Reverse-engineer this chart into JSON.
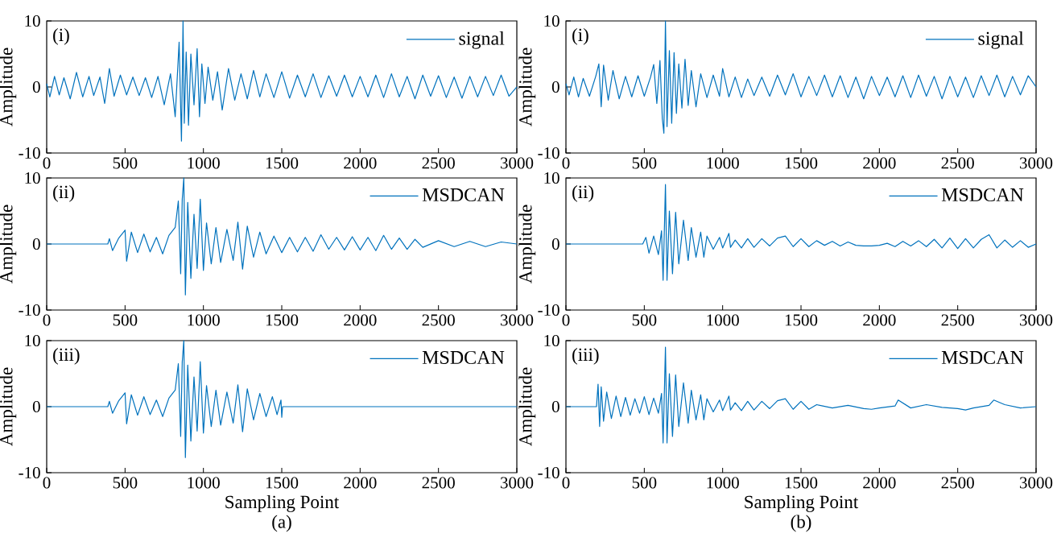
{
  "chart_data": [
    {
      "type": "line",
      "ylabel": "Amplitude",
      "xlim": [
        0,
        3000
      ],
      "ylim": [
        -10,
        10
      ],
      "xticks": [
        0,
        500,
        1000,
        1500,
        2000,
        2500,
        3000
      ],
      "yticks": [
        -10,
        0,
        10
      ],
      "legend": "top right",
      "annotations": [
        "(i)"
      ],
      "series": [
        {
          "name": "signal",
          "color": "#0072bd",
          "x": [
            0,
            20,
            50,
            80,
            110,
            150,
            190,
            230,
            270,
            300,
            340,
            370,
            400,
            430,
            470,
            510,
            550,
            590,
            630,
            670,
            710,
            750,
            790,
            820,
            845,
            860,
            870,
            878,
            890,
            905,
            920,
            940,
            960,
            975,
            990,
            1010,
            1030,
            1060,
            1090,
            1120,
            1160,
            1200,
            1240,
            1280,
            1320,
            1360,
            1400,
            1450,
            1500,
            1550,
            1600,
            1650,
            1700,
            1750,
            1800,
            1850,
            1900,
            1950,
            2000,
            2050,
            2100,
            2150,
            2200,
            2250,
            2300,
            2350,
            2400,
            2450,
            2500,
            2550,
            2600,
            2650,
            2700,
            2750,
            2800,
            2850,
            2900,
            2950,
            3000
          ],
          "values": [
            0.5,
            -1.5,
            1.6,
            -1.2,
            1.4,
            -1.8,
            2.2,
            -1.5,
            1.6,
            -1.3,
            1.5,
            -2.5,
            2.8,
            -1.4,
            1.8,
            -1.2,
            1.5,
            -1.3,
            1.4,
            -1.6,
            1.6,
            -2.7,
            2.0,
            -4.5,
            6.8,
            -8.2,
            10,
            -5.5,
            5.3,
            -5.8,
            5.0,
            -2.7,
            5.8,
            -4.5,
            3.5,
            -2.5,
            3.0,
            -2.0,
            2.3,
            -3.5,
            2.8,
            -2.0,
            2.0,
            -1.8,
            2.5,
            -1.5,
            2.0,
            -1.6,
            2.3,
            -1.7,
            1.8,
            -1.5,
            2.0,
            -1.6,
            1.7,
            -1.4,
            1.8,
            -1.5,
            1.6,
            -1.5,
            1.8,
            -1.6,
            2.0,
            -1.5,
            1.6,
            -1.8,
            1.8,
            -1.4,
            1.7,
            -1.6,
            1.5,
            -1.7,
            1.6,
            -1.5,
            1.6,
            -1.3,
            1.8,
            -1.4,
            0
          ]
        }
      ]
    },
    {
      "type": "line",
      "ylabel": "Amplitude",
      "xlim": [
        0,
        3000
      ],
      "ylim": [
        -10,
        10
      ],
      "xticks": [
        0,
        500,
        1000,
        1500,
        2000,
        2500,
        3000
      ],
      "yticks": [
        -10,
        0,
        10
      ],
      "legend": "top right",
      "annotations": [
        "(i)"
      ],
      "series": [
        {
          "name": "signal",
          "color": "#0072bd",
          "x": [
            0,
            20,
            50,
            80,
            110,
            150,
            190,
            210,
            225,
            240,
            270,
            300,
            340,
            380,
            420,
            460,
            500,
            540,
            560,
            580,
            600,
            615,
            625,
            635,
            645,
            660,
            675,
            690,
            705,
            720,
            740,
            760,
            780,
            800,
            830,
            860,
            900,
            940,
            980,
            1000,
            1040,
            1080,
            1120,
            1160,
            1200,
            1250,
            1300,
            1350,
            1400,
            1450,
            1500,
            1550,
            1600,
            1650,
            1700,
            1750,
            1800,
            1850,
            1900,
            1950,
            2000,
            2050,
            2100,
            2150,
            2200,
            2250,
            2300,
            2350,
            2400,
            2450,
            2500,
            2550,
            2600,
            2650,
            2700,
            2750,
            2800,
            2850,
            2900,
            2950,
            3000
          ],
          "values": [
            0.5,
            -1.2,
            1.5,
            -1.5,
            1.3,
            -1.4,
            1.6,
            3.5,
            -3.0,
            3.3,
            -2.0,
            2.5,
            -1.8,
            1.6,
            -1.5,
            1.7,
            -1.4,
            1.5,
            3.4,
            -2.5,
            4.0,
            -4.8,
            -7.0,
            10,
            -6.0,
            5.5,
            -5.5,
            5.2,
            -4.0,
            3.5,
            -3.2,
            4.2,
            -2.8,
            2.5,
            -3.0,
            2.0,
            -1.6,
            1.8,
            -1.4,
            2.8,
            -1.5,
            1.5,
            -1.6,
            1.2,
            -1.3,
            1.5,
            -1.4,
            1.8,
            -1.2,
            2.0,
            -1.5,
            1.6,
            -1.3,
            1.8,
            -1.5,
            1.7,
            -1.6,
            1.5,
            -1.8,
            1.6,
            -1.3,
            1.5,
            -1.5,
            1.7,
            -1.6,
            1.8,
            -1.4,
            1.6,
            -1.8,
            1.6,
            -1.5,
            1.5,
            -1.6,
            1.7,
            -1.3,
            1.8,
            -1.5,
            1.6,
            -1.2,
            1.7,
            0
          ]
        }
      ]
    },
    {
      "type": "line",
      "ylabel": "Amplitude",
      "xlim": [
        0,
        3000
      ],
      "ylim": [
        -10,
        10
      ],
      "xticks": [
        0,
        500,
        1000,
        1500,
        2000,
        2500,
        3000
      ],
      "yticks": [
        -10,
        0,
        10
      ],
      "legend": "top right",
      "annotations": [
        "(ii)"
      ],
      "series": [
        {
          "name": "MSDCAN",
          "color": "#0072bd",
          "x": [
            0,
            390,
            400,
            420,
            460,
            500,
            510,
            540,
            580,
            620,
            660,
            700,
            740,
            780,
            820,
            840,
            855,
            865,
            875,
            885,
            900,
            920,
            940,
            960,
            980,
            1000,
            1020,
            1050,
            1080,
            1110,
            1150,
            1190,
            1220,
            1250,
            1280,
            1320,
            1360,
            1400,
            1450,
            1500,
            1550,
            1600,
            1650,
            1700,
            1750,
            1800,
            1850,
            1900,
            1950,
            2000,
            2050,
            2100,
            2150,
            2200,
            2250,
            2300,
            2350,
            2400,
            2500,
            2600,
            2700,
            2800,
            2900,
            3000
          ],
          "values": [
            0,
            0,
            0.8,
            -1.0,
            0.9,
            2.1,
            -2.6,
            1.8,
            -1.3,
            1.5,
            -1.2,
            1.0,
            -1.5,
            1.3,
            2.5,
            6.5,
            -4.5,
            6.8,
            10,
            -7.7,
            6.3,
            -5.2,
            4.5,
            -3.7,
            6.8,
            -4.0,
            3.2,
            -3.0,
            2.5,
            -2.8,
            2.2,
            -2.5,
            3.3,
            -3.8,
            2.7,
            -2.0,
            1.8,
            -1.5,
            1.2,
            -1.3,
            1.0,
            -1.2,
            1.0,
            -1.1,
            1.4,
            -0.8,
            1.0,
            -0.9,
            1.1,
            -0.9,
            1.0,
            -1.0,
            1.3,
            -0.8,
            0.9,
            -0.8,
            0.7,
            -0.5,
            0.5,
            -0.4,
            0.4,
            -0.4,
            0.3,
            0
          ]
        }
      ]
    },
    {
      "type": "line",
      "ylabel": "Amplitude",
      "xlim": [
        0,
        3000
      ],
      "ylim": [
        -10,
        10
      ],
      "xticks": [
        0,
        500,
        1000,
        1500,
        2000,
        2500,
        3000
      ],
      "yticks": [
        -10,
        0,
        10
      ],
      "legend": "top right",
      "annotations": [
        "(ii)"
      ],
      "series": [
        {
          "name": "MSDCAN",
          "color": "#0072bd",
          "x": [
            0,
            490,
            510,
            530,
            560,
            590,
            610,
            620,
            630,
            635,
            645,
            660,
            680,
            700,
            720,
            750,
            780,
            800,
            830,
            860,
            880,
            900,
            940,
            980,
            1000,
            1040,
            1050,
            1080,
            1120,
            1160,
            1200,
            1250,
            1300,
            1350,
            1400,
            1450,
            1500,
            1550,
            1600,
            1650,
            1700,
            1750,
            1800,
            1850,
            1900,
            1950,
            2000,
            2050,
            2100,
            2150,
            2200,
            2250,
            2300,
            2350,
            2400,
            2450,
            2500,
            2550,
            2600,
            2650,
            2700,
            2750,
            2800,
            2850,
            2900,
            2950,
            3000
          ],
          "values": [
            0,
            0,
            1.0,
            -1.4,
            1.2,
            -1.6,
            2.0,
            -5.5,
            4.0,
            9.0,
            -5.5,
            5.0,
            -4.5,
            4.8,
            -3.0,
            3.6,
            -2.5,
            2.5,
            -2.0,
            1.8,
            -2.0,
            1.2,
            -0.8,
            1.0,
            -0.6,
            1.6,
            -0.5,
            0.6,
            -0.6,
            0.8,
            -0.5,
            0.8,
            -0.3,
            0.9,
            1.2,
            -0.4,
            0.8,
            -0.4,
            0.5,
            -0.2,
            0.4,
            -0.3,
            0.3,
            -0.2,
            -0.3,
            -0.3,
            -0.2,
            0.1,
            -0.4,
            0.4,
            -0.3,
            0.5,
            -0.4,
            0.7,
            -0.6,
            0.9,
            -0.7,
            0.8,
            -0.6,
            0.7,
            1.4,
            -0.6,
            0.6,
            -0.5,
            0.5,
            -0.5,
            0
          ]
        }
      ]
    },
    {
      "type": "line",
      "ylabel": "Amplitude",
      "xlabel": "Sampling Point",
      "xlim": [
        0,
        3000
      ],
      "ylim": [
        -10,
        10
      ],
      "xticks": [
        0,
        500,
        1000,
        1500,
        2000,
        2500,
        3000
      ],
      "yticks": [
        -10,
        0,
        10
      ],
      "legend": "top right",
      "annotations": [
        "(iii)",
        "(a)"
      ],
      "series": [
        {
          "name": "MSDCAN",
          "color": "#0072bd",
          "x": [
            0,
            390,
            400,
            420,
            460,
            500,
            510,
            540,
            580,
            620,
            660,
            700,
            740,
            780,
            820,
            840,
            855,
            865,
            875,
            885,
            900,
            920,
            940,
            960,
            980,
            1000,
            1020,
            1050,
            1080,
            1110,
            1150,
            1190,
            1220,
            1250,
            1280,
            1320,
            1360,
            1400,
            1440,
            1470,
            1495,
            1500,
            1505,
            3000
          ],
          "values": [
            0,
            0,
            0.8,
            -1.0,
            0.9,
            2.1,
            -2.6,
            1.8,
            -1.3,
            1.5,
            -1.2,
            1.0,
            -1.5,
            1.3,
            2.5,
            6.5,
            -4.5,
            6.8,
            10,
            -7.7,
            6.3,
            -5.2,
            4.5,
            -3.7,
            6.8,
            -4.0,
            3.2,
            -3.0,
            2.5,
            -2.8,
            2.2,
            -2.5,
            3.3,
            -3.8,
            2.7,
            -2.0,
            2.0,
            -1.5,
            1.5,
            -1.2,
            1.0,
            -1.6,
            0,
            0
          ]
        }
      ]
    },
    {
      "type": "line",
      "ylabel": "Amplitude",
      "xlabel": "Sampling Point",
      "xlim": [
        0,
        3000
      ],
      "ylim": [
        -10,
        10
      ],
      "xticks": [
        0,
        500,
        1000,
        1500,
        2000,
        2500,
        3000
      ],
      "yticks": [
        -10,
        0,
        10
      ],
      "legend": "top right",
      "annotations": [
        "(iii)",
        "(b)"
      ],
      "series": [
        {
          "name": "MSDCAN",
          "color": "#0072bd",
          "x": [
            0,
            195,
            205,
            215,
            225,
            240,
            260,
            290,
            320,
            350,
            380,
            410,
            440,
            470,
            500,
            530,
            560,
            590,
            610,
            620,
            630,
            635,
            645,
            660,
            680,
            700,
            720,
            750,
            780,
            800,
            830,
            860,
            880,
            900,
            940,
            980,
            1000,
            1040,
            1050,
            1080,
            1120,
            1160,
            1200,
            1250,
            1300,
            1350,
            1400,
            1450,
            1500,
            1550,
            1600,
            1700,
            1800,
            1900,
            1950,
            2000,
            2100,
            2120,
            2200,
            2300,
            2400,
            2500,
            2550,
            2600,
            2700,
            2730,
            2800,
            2900,
            3000
          ],
          "values": [
            0,
            0,
            3.4,
            -3.0,
            3.0,
            -2.2,
            2.2,
            -1.8,
            1.6,
            -1.5,
            1.4,
            -1.3,
            1.2,
            -1.0,
            1.5,
            -1.2,
            1.3,
            -1.0,
            2.0,
            -5.5,
            4.0,
            9.0,
            -5.5,
            5.0,
            -4.5,
            4.8,
            -3.0,
            3.6,
            -2.5,
            2.5,
            -2.0,
            1.8,
            -2.0,
            1.2,
            -0.8,
            1.0,
            -0.6,
            1.6,
            -0.5,
            0.6,
            -0.6,
            0.8,
            -0.5,
            0.8,
            -0.3,
            0.9,
            1.2,
            -0.4,
            0.8,
            -0.4,
            0.3,
            -0.2,
            0.2,
            -0.3,
            -0.4,
            -0.2,
            0.1,
            1.0,
            -0.2,
            0.3,
            -0.1,
            -0.3,
            -0.5,
            -0.2,
            0.2,
            1.0,
            0.3,
            -0.2,
            0
          ]
        }
      ]
    }
  ]
}
